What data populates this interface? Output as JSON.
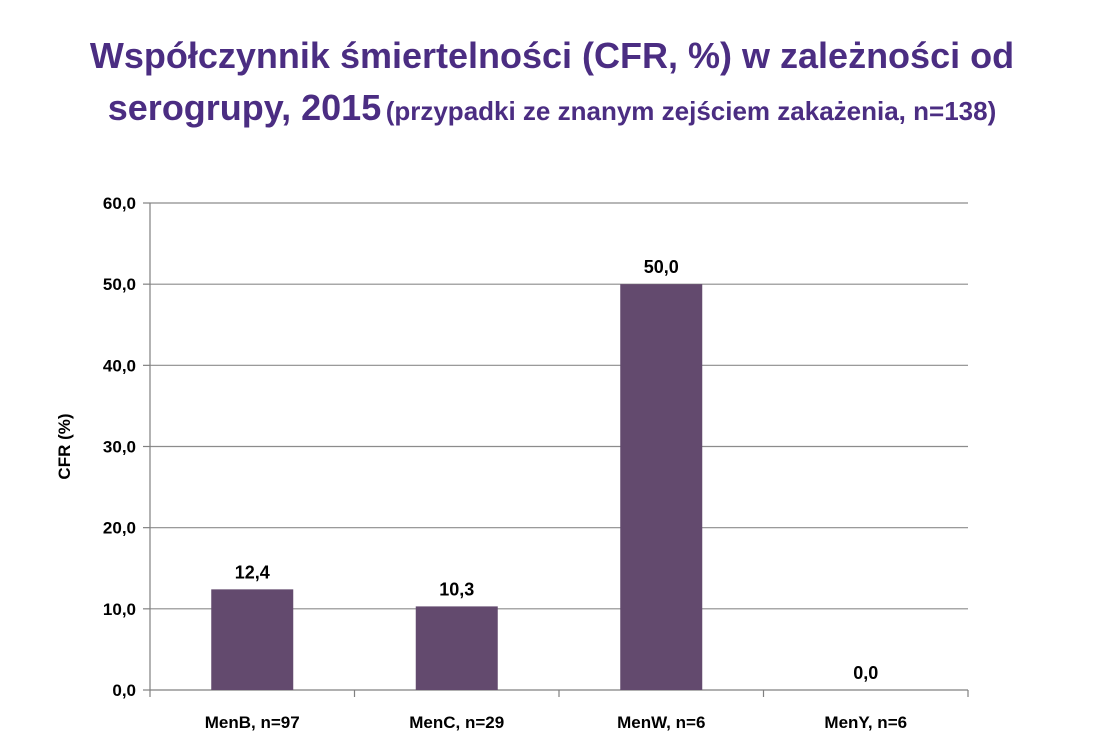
{
  "header": {
    "title_line_1": "Współczynnik śmiertelności (CFR, %) w zależności od",
    "title_line_2": "serogrupy, 2015",
    "subtitle": "(przypadki ze znanym zejściem zakażenia, n=138)"
  },
  "colors": {
    "title": "#4b2d82",
    "bar": "#634a6e",
    "grid": "#8c8c8c",
    "axis": "#808080"
  },
  "chart_data": {
    "type": "bar",
    "title": "Współczynnik śmiertelności (CFR, %) w zależności od serogrupy, 2015",
    "subtitle": "(przypadki ze znanym zejściem zakażenia, n=138)",
    "categories": [
      "MenB, n=97",
      "MenC, n=29",
      "MenW, n=6",
      "MenY, n=6"
    ],
    "values": [
      12.4,
      10.3,
      50.0,
      0.0
    ],
    "data_labels": [
      "12,4",
      "10,3",
      "50,0",
      "0,0"
    ],
    "xlabel": "",
    "ylabel": "CFR (%)",
    "ylim": [
      0,
      60
    ],
    "yticks": [
      0,
      10,
      20,
      30,
      40,
      50,
      60
    ],
    "ytick_labels": [
      "0,0",
      "10,0",
      "20,0",
      "30,0",
      "40,0",
      "50,0",
      "60,0"
    ],
    "grid": true,
    "legend": "none"
  }
}
